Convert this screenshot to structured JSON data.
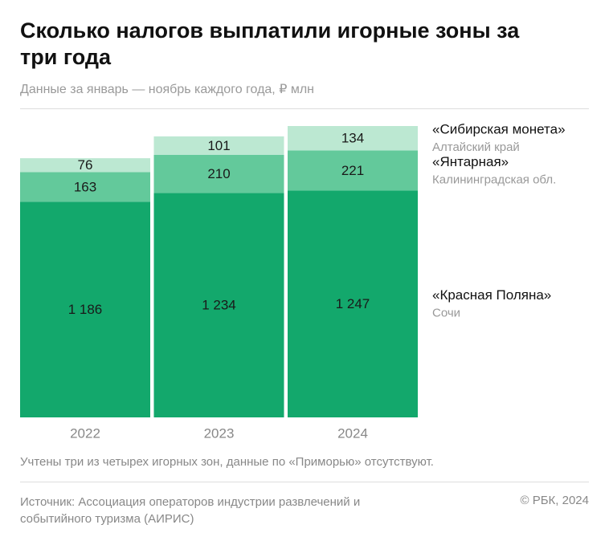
{
  "chart_data": {
    "type": "stacked-bar",
    "title": "Сколько налогов выплатили игорные зоны за три года",
    "subtitle": "Данные за январь — ноябрь каждого года, ₽ млн",
    "categories": [
      "2022",
      "2023",
      "2024"
    ],
    "series": [
      {
        "name": "«Красная Поляна»",
        "region": "Сочи",
        "color": "#13a86c",
        "values": [
          1186,
          1234,
          1247
        ],
        "value_labels": [
          "1 186",
          "1 234",
          "1 247"
        ]
      },
      {
        "name": "«Янтарная»",
        "region": "Калининградская обл.",
        "color": "#63c99b",
        "values": [
          163,
          210,
          221
        ]
      },
      {
        "name": "«Сибирская монета»",
        "region": "Алтайский край",
        "color": "#bce8d2",
        "values": [
          76,
          101,
          134
        ]
      }
    ],
    "note": "Учтены три из четырех игорных зон, данные по «Приморью» отсутствуют.",
    "source": "Источник: Ассоциация операторов индустрии развлечений и событийного туризма (АИРИС)",
    "copyright": "© РБК, 2024"
  }
}
